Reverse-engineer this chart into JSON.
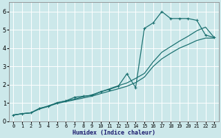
{
  "xlabel": "Humidex (Indice chaleur)",
  "bg_color": "#cce8ea",
  "grid_color": "#ffffff",
  "line_color": "#1a7070",
  "xlim": [
    -0.5,
    23.5
  ],
  "ylim": [
    0,
    6.5
  ],
  "xticks": [
    0,
    1,
    2,
    3,
    4,
    5,
    6,
    7,
    8,
    9,
    10,
    11,
    12,
    13,
    14,
    15,
    16,
    17,
    18,
    19,
    20,
    21,
    22,
    23
  ],
  "yticks": [
    0,
    1,
    2,
    3,
    4,
    5,
    6
  ],
  "line1_x": [
    0,
    1,
    2,
    3,
    4,
    5,
    6,
    7,
    8,
    9,
    10,
    11,
    12,
    13,
    14,
    15,
    16,
    17,
    18,
    19,
    20,
    21,
    22,
    23
  ],
  "line1_y": [
    0.35,
    0.42,
    0.47,
    0.68,
    0.82,
    0.98,
    1.08,
    1.18,
    1.28,
    1.38,
    1.52,
    1.65,
    1.78,
    1.92,
    2.12,
    2.42,
    3.0,
    3.42,
    3.72,
    4.0,
    4.2,
    4.42,
    4.55,
    4.55
  ],
  "line2_x": [
    0,
    1,
    2,
    3,
    4,
    5,
    6,
    7,
    8,
    9,
    10,
    11,
    12,
    13,
    14,
    15,
    16,
    17,
    18,
    19,
    20,
    21,
    22,
    23
  ],
  "line2_y": [
    0.35,
    0.42,
    0.47,
    0.7,
    0.85,
    1.02,
    1.12,
    1.22,
    1.35,
    1.45,
    1.62,
    1.78,
    1.95,
    2.1,
    2.35,
    2.62,
    3.25,
    3.78,
    4.08,
    4.38,
    4.65,
    4.95,
    5.15,
    4.58
  ],
  "line3_x": [
    0,
    1,
    2,
    3,
    4,
    5,
    6,
    7,
    8,
    9,
    10,
    11,
    12,
    13,
    14,
    15,
    16,
    17,
    18,
    19,
    20,
    21,
    22,
    23
  ],
  "line3_y": [
    0.35,
    0.42,
    0.47,
    0.72,
    0.82,
    1.02,
    1.12,
    1.32,
    1.38,
    1.42,
    1.62,
    1.75,
    1.92,
    2.6,
    1.85,
    5.08,
    5.38,
    6.0,
    5.62,
    5.62,
    5.62,
    5.52,
    4.72,
    4.58
  ]
}
